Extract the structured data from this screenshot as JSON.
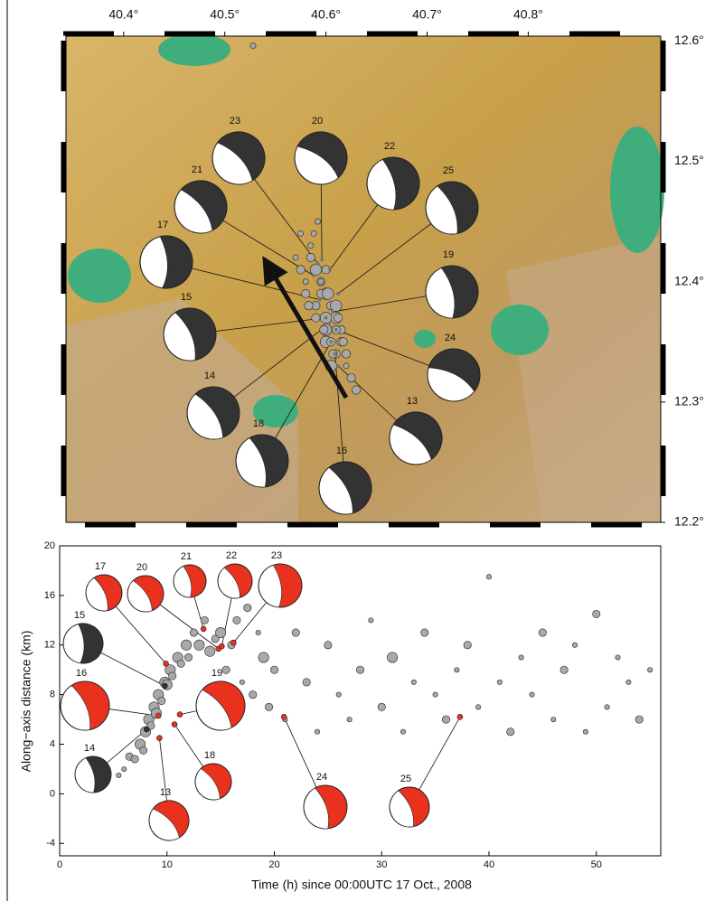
{
  "chart_data": [
    {
      "type": "map",
      "xlim": [
        40.343,
        40.931
      ],
      "ylim": [
        12.2,
        12.604
      ],
      "xticks": [
        {
          "value": 40.4,
          "label": "40.4°"
        },
        {
          "value": 40.5,
          "label": "40.5°"
        },
        {
          "value": 40.6,
          "label": "40.6°"
        },
        {
          "value": 40.7,
          "label": "40.7°"
        },
        {
          "value": 40.8,
          "label": "40.8°"
        }
      ],
      "yticks": [
        {
          "value": 12.2,
          "label": "12.2°"
        },
        {
          "value": 12.3,
          "label": "12.3°"
        },
        {
          "value": 12.4,
          "label": "12.4°"
        },
        {
          "value": 12.5,
          "label": "12.5°"
        },
        {
          "value": 12.6,
          "label": "12.6°"
        }
      ],
      "events": {
        "color": "#a8a8a8",
        "x": [
          40.585,
          40.59,
          40.595,
          40.6,
          40.605,
          40.61,
          40.615,
          40.58,
          40.575,
          40.59,
          40.6,
          40.61,
          40.62,
          40.625,
          40.6,
          40.595,
          40.605,
          40.585,
          40.57,
          40.615,
          40.6,
          40.59,
          40.61,
          40.58,
          40.62,
          40.605,
          40.595,
          40.6,
          40.61,
          40.63,
          40.588,
          40.598,
          40.612,
          40.575,
          40.592,
          40.607,
          40.617,
          40.602,
          40.583,
          40.528
        ],
        "y": [
          12.42,
          12.41,
          12.4,
          12.39,
          12.38,
          12.37,
          12.36,
          12.4,
          12.41,
          12.37,
          12.35,
          12.34,
          12.33,
          12.32,
          12.36,
          12.39,
          12.35,
          12.43,
          12.42,
          12.35,
          12.37,
          12.38,
          12.36,
          12.39,
          12.34,
          12.33,
          12.4,
          12.41,
          12.38,
          12.31,
          12.44,
          12.36,
          12.37,
          12.44,
          12.45,
          12.34,
          12.35,
          12.39,
          12.38,
          12.596
        ],
        "sizes": [
          2,
          3,
          2,
          3,
          2,
          3,
          2,
          1,
          2,
          2,
          3,
          2,
          1,
          2,
          3,
          2,
          2,
          1,
          1,
          2,
          3,
          2,
          2,
          2,
          2,
          3,
          1,
          2,
          3,
          2,
          1,
          2,
          2,
          1,
          1,
          2,
          2,
          3,
          2,
          1
        ]
      },
      "mechanisms": [
        {
          "label": "23",
          "lon": 40.592,
          "lat": 12.415,
          "color": "#333333"
        },
        {
          "label": "20",
          "lon": 40.596,
          "lat": 12.418,
          "color": "#333333"
        },
        {
          "label": "22",
          "lon": 40.604,
          "lat": 12.41,
          "color": "#333333"
        },
        {
          "label": "25",
          "lon": 40.612,
          "lat": 12.39,
          "color": "#333333"
        },
        {
          "label": "21",
          "lon": 40.588,
          "lat": 12.405,
          "color": "#333333"
        },
        {
          "label": "17",
          "lon": 40.594,
          "lat": 12.385,
          "color": "#333333"
        },
        {
          "label": "19",
          "lon": 40.607,
          "lat": 12.375,
          "color": "#333333"
        },
        {
          "label": "15",
          "lon": 40.6,
          "lat": 12.37,
          "color": "#333333"
        },
        {
          "label": "24",
          "lon": 40.61,
          "lat": 12.36,
          "color": "#333333"
        },
        {
          "label": "14",
          "lon": 40.603,
          "lat": 12.365,
          "color": "#333333"
        },
        {
          "label": "13",
          "lon": 40.612,
          "lat": 12.33,
          "color": "#333333"
        },
        {
          "label": "18",
          "lon": 40.605,
          "lat": 12.35,
          "color": "#333333"
        },
        {
          "label": "16",
          "lon": 40.609,
          "lat": 12.34,
          "color": "#333333"
        }
      ]
    },
    {
      "type": "scatter",
      "xlabel": "Time (h) since 00:00UTC 17 Oct., 2008",
      "ylabel": "Along−axis distance (km)",
      "xlim": [
        0,
        56
      ],
      "ylim": [
        -5,
        20
      ],
      "xticks": [
        0,
        10,
        20,
        30,
        40,
        50
      ],
      "yticks": [
        -4,
        0,
        4,
        8,
        12,
        16,
        20
      ],
      "events": {
        "color": "#a8a8a8",
        "x": [
          5.5,
          6,
          6.5,
          7,
          7.5,
          7.8,
          8,
          8.3,
          8.5,
          8.8,
          9,
          9.2,
          9.5,
          9.8,
          10,
          10.3,
          10.5,
          11,
          11.3,
          11.8,
          12,
          12.5,
          13,
          13.5,
          14,
          14.5,
          15,
          15.5,
          16,
          16.5,
          17,
          17.5,
          18,
          18.5,
          19,
          19.5,
          20,
          21,
          22,
          23,
          24,
          25,
          26,
          27,
          28,
          29,
          30,
          31,
          32,
          33,
          34,
          35,
          36,
          37,
          38,
          39,
          40,
          41,
          42,
          43,
          44,
          45,
          46,
          47,
          48,
          49,
          50,
          51,
          52,
          53,
          54,
          55
        ],
        "y": [
          1.5,
          2,
          3,
          2.8,
          4,
          3.5,
          5,
          6,
          5.5,
          7,
          6.5,
          8,
          7.5,
          9,
          8.8,
          10,
          9.5,
          11,
          10.5,
          12,
          11,
          13,
          12,
          14,
          11.5,
          12.5,
          13,
          10,
          12,
          14,
          9,
          15,
          8,
          13,
          11,
          7,
          10,
          6,
          13,
          9,
          5,
          12,
          8,
          6,
          10,
          14,
          7,
          11,
          5,
          9,
          13,
          8,
          6,
          10,
          12,
          7,
          17.5,
          9,
          5,
          11,
          8,
          13,
          6,
          10,
          12,
          5,
          14.5,
          7,
          11,
          9,
          6,
          10
        ],
        "sizes": [
          1,
          1,
          2,
          2,
          3,
          2,
          3,
          3,
          2,
          3,
          3,
          3,
          2,
          3,
          3,
          3,
          2,
          3,
          2,
          3,
          2,
          2,
          3,
          2,
          3,
          2,
          3,
          2,
          2,
          2,
          1,
          2,
          2,
          1,
          3,
          2,
          2,
          1,
          2,
          2,
          1,
          2,
          1,
          1,
          2,
          1,
          2,
          3,
          1,
          1,
          2,
          1,
          2,
          1,
          2,
          1,
          1,
          1,
          2,
          1,
          1,
          2,
          1,
          2,
          1,
          1,
          2,
          1,
          1,
          1,
          2,
          1
        ]
      },
      "mechanisms": [
        {
          "label": "17",
          "time": 9.9,
          "distance": 10.5,
          "color": "#e8321e"
        },
        {
          "label": "20",
          "time": 14.8,
          "distance": 11.7,
          "color": "#e8321e"
        },
        {
          "label": "21",
          "time": 13.4,
          "distance": 13.3,
          "color": "#e8321e"
        },
        {
          "label": "22",
          "time": 15.1,
          "distance": 11.9,
          "color": "#e8321e"
        },
        {
          "label": "23",
          "time": 16.2,
          "distance": 12.2,
          "color": "#e8321e"
        },
        {
          "label": "15",
          "time": 9.8,
          "distance": 8.7,
          "color": "#333333"
        },
        {
          "label": "16",
          "time": 9.2,
          "distance": 6.3,
          "color": "#e8321e"
        },
        {
          "label": "19",
          "time": 11.2,
          "distance": 6.4,
          "color": "#e8321e"
        },
        {
          "label": "14",
          "time": 8.1,
          "distance": 5.2,
          "color": "#333333"
        },
        {
          "label": "18",
          "time": 10.7,
          "distance": 5.6,
          "color": "#e8321e"
        },
        {
          "label": "13",
          "time": 9.3,
          "distance": 4.5,
          "color": "#e8321e"
        },
        {
          "label": "24",
          "time": 20.9,
          "distance": 6.2,
          "color": "#e8321e"
        },
        {
          "label": "25",
          "time": 37.3,
          "distance": 6.2,
          "color": "#e8321e"
        }
      ]
    }
  ]
}
